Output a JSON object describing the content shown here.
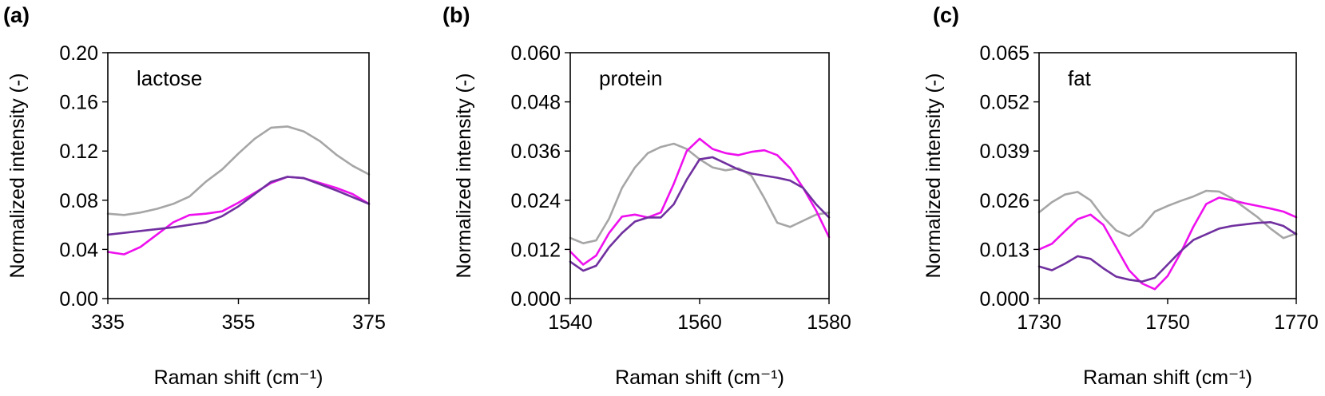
{
  "chart_data": [
    {
      "panel": "(a)",
      "type": "line",
      "title": "lactose",
      "xlabel": "Raman shift (cm⁻¹)",
      "ylabel": "Normalized intensity (-)",
      "xlim": [
        335,
        375
      ],
      "ylim": [
        0,
        0.2
      ],
      "xticks": [
        "335",
        "355",
        "375"
      ],
      "yticks": [
        "0.00",
        "0.04",
        "0.08",
        "0.12",
        "0.16",
        "0.20"
      ],
      "grid": false,
      "series": [
        {
          "color": "#a6a6a6",
          "x": [
            335,
            337.5,
            340,
            342.5,
            345,
            347.5,
            350,
            352.5,
            355,
            357.5,
            360,
            362.5,
            365,
            367.5,
            370,
            372.5,
            375
          ],
          "y": [
            0.069,
            0.068,
            0.07,
            0.073,
            0.077,
            0.083,
            0.095,
            0.105,
            0.118,
            0.13,
            0.139,
            0.14,
            0.136,
            0.128,
            0.117,
            0.108,
            0.101
          ]
        },
        {
          "color": "#ee10ee",
          "x": [
            335,
            337.5,
            340,
            342.5,
            345,
            347.5,
            350,
            352.5,
            355,
            357.5,
            360,
            362.5,
            365,
            367.5,
            370,
            372.5,
            375
          ],
          "y": [
            0.038,
            0.036,
            0.042,
            0.052,
            0.062,
            0.068,
            0.069,
            0.071,
            0.078,
            0.086,
            0.094,
            0.099,
            0.098,
            0.094,
            0.09,
            0.085,
            0.077
          ]
        },
        {
          "color": "#70309f",
          "x": [
            335,
            340,
            345,
            350,
            352.5,
            355,
            357.5,
            360,
            362.5,
            365,
            370,
            375
          ],
          "y": [
            0.052,
            0.055,
            0.058,
            0.062,
            0.067,
            0.075,
            0.085,
            0.095,
            0.099,
            0.098,
            0.088,
            0.077
          ]
        }
      ]
    },
    {
      "panel": "(b)",
      "type": "line",
      "title": "protein",
      "xlabel": "Raman shift (cm⁻¹)",
      "ylabel": "Normalized intensity (-)",
      "xlim": [
        1540,
        1580
      ],
      "ylim": [
        0,
        0.06
      ],
      "xticks": [
        "1540",
        "1560",
        "1580"
      ],
      "yticks": [
        "0.000",
        "0.012",
        "0.024",
        "0.036",
        "0.048",
        "0.060"
      ],
      "grid": false,
      "series": [
        {
          "color": "#a6a6a6",
          "x": [
            1540,
            1542,
            1544,
            1546,
            1548,
            1550,
            1552,
            1554,
            1556,
            1558,
            1560,
            1562,
            1564,
            1566,
            1568,
            1570,
            1572,
            1574,
            1576,
            1578,
            1580
          ],
          "y": [
            0.0148,
            0.0135,
            0.0142,
            0.0195,
            0.027,
            0.032,
            0.0355,
            0.037,
            0.0378,
            0.0365,
            0.034,
            0.032,
            0.0313,
            0.0318,
            0.03,
            0.0245,
            0.0185,
            0.0175,
            0.019,
            0.0205,
            0.021
          ]
        },
        {
          "color": "#ee10ee",
          "x": [
            1540,
            1542,
            1544,
            1546,
            1548,
            1550,
            1552,
            1554,
            1556,
            1558,
            1560,
            1562,
            1564,
            1566,
            1568,
            1570,
            1572,
            1574,
            1576,
            1578,
            1580
          ],
          "y": [
            0.0115,
            0.0083,
            0.0105,
            0.016,
            0.02,
            0.0205,
            0.0198,
            0.021,
            0.028,
            0.036,
            0.039,
            0.0365,
            0.0355,
            0.035,
            0.0358,
            0.0362,
            0.035,
            0.0318,
            0.027,
            0.0215,
            0.015
          ]
        },
        {
          "color": "#70309f",
          "x": [
            1540,
            1542,
            1544,
            1546,
            1548,
            1550,
            1552,
            1554,
            1556,
            1558,
            1560,
            1562,
            1564,
            1566,
            1568,
            1570,
            1572,
            1574,
            1576,
            1578,
            1580
          ],
          "y": [
            0.009,
            0.0068,
            0.008,
            0.0125,
            0.016,
            0.0188,
            0.0198,
            0.0198,
            0.023,
            0.029,
            0.034,
            0.0345,
            0.033,
            0.0315,
            0.0305,
            0.03,
            0.0295,
            0.0288,
            0.027,
            0.023,
            0.0198
          ]
        }
      ]
    },
    {
      "panel": "(c)",
      "type": "line",
      "title": "fat",
      "xlabel": "Raman shift (cm⁻¹)",
      "ylabel": "Normalized intensity (-)",
      "xlim": [
        1730,
        1770
      ],
      "ylim": [
        0,
        0.065
      ],
      "xticks": [
        "1730",
        "1750",
        "1770"
      ],
      "yticks": [
        "0.000",
        "0.013",
        "0.026",
        "0.039",
        "0.052",
        "0.065"
      ],
      "grid": false,
      "series": [
        {
          "color": "#a6a6a6",
          "x": [
            1730,
            1732,
            1734,
            1736,
            1738,
            1740,
            1742,
            1744,
            1746,
            1748,
            1750,
            1752,
            1754,
            1756,
            1758,
            1760,
            1762,
            1764,
            1766,
            1768,
            1770
          ],
          "y": [
            0.0228,
            0.0255,
            0.0275,
            0.0282,
            0.026,
            0.0215,
            0.018,
            0.0165,
            0.019,
            0.023,
            0.0245,
            0.0258,
            0.027,
            0.0285,
            0.0283,
            0.0265,
            0.024,
            0.0215,
            0.0185,
            0.016,
            0.0172
          ]
        },
        {
          "color": "#ee10ee",
          "x": [
            1730,
            1732,
            1734,
            1736,
            1738,
            1740,
            1742,
            1744,
            1746,
            1748,
            1750,
            1752,
            1754,
            1756,
            1758,
            1760,
            1762,
            1764,
            1766,
            1768,
            1770
          ],
          "y": [
            0.013,
            0.0145,
            0.0178,
            0.021,
            0.0222,
            0.0195,
            0.0135,
            0.0075,
            0.004,
            0.0025,
            0.006,
            0.012,
            0.019,
            0.025,
            0.0267,
            0.026,
            0.0252,
            0.0245,
            0.0238,
            0.023,
            0.0215
          ]
        },
        {
          "color": "#70309f",
          "x": [
            1730,
            1732,
            1734,
            1736,
            1738,
            1740,
            1742,
            1744,
            1746,
            1748,
            1750,
            1752,
            1754,
            1756,
            1758,
            1760,
            1762,
            1764,
            1766,
            1768,
            1770
          ],
          "y": [
            0.0085,
            0.0075,
            0.0092,
            0.0112,
            0.0105,
            0.008,
            0.0058,
            0.005,
            0.0045,
            0.0055,
            0.009,
            0.0125,
            0.0155,
            0.017,
            0.0185,
            0.0192,
            0.0196,
            0.02,
            0.0202,
            0.0192,
            0.017
          ]
        }
      ]
    }
  ]
}
